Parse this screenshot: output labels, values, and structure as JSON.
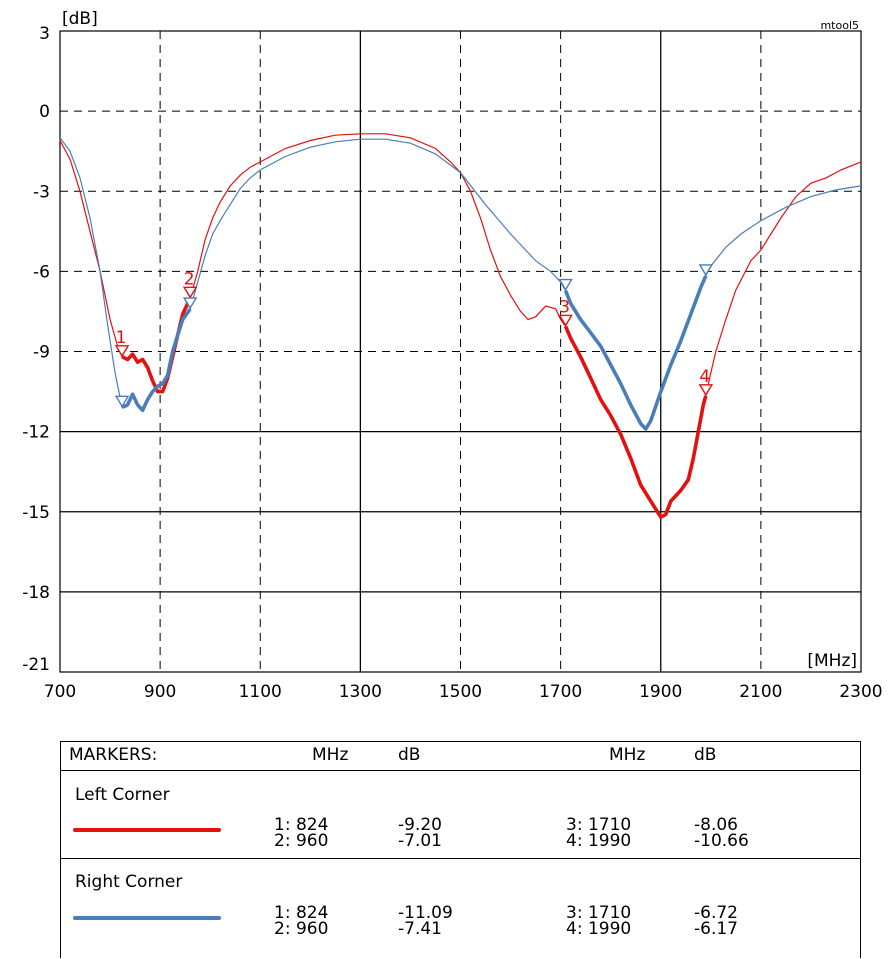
{
  "chart_data": {
    "type": "line",
    "tool_label": "mtool5",
    "ylabel": "[dB]",
    "xlabel": "[MHz]",
    "xlim": [
      700,
      2300
    ],
    "ylim": [
      -21,
      3
    ],
    "x_ticks": [
      "700",
      "900",
      "1100",
      "1300",
      "1500",
      "1700",
      "1900",
      "2100",
      "2300"
    ],
    "y_ticks": [
      "3",
      "0",
      "-3",
      "-6",
      "-9",
      "-12",
      "-15",
      "-18",
      "-21"
    ],
    "grid": true,
    "colors": {
      "red": "#e3110f",
      "blue": "#4a7eb8"
    },
    "series": [
      {
        "name": "Left Corner",
        "color": "#e3110f",
        "points": [
          [
            700,
            -1.1
          ],
          [
            720,
            -1.8
          ],
          [
            740,
            -3.0
          ],
          [
            760,
            -4.5
          ],
          [
            780,
            -6.0
          ],
          [
            800,
            -7.8
          ],
          [
            815,
            -8.8
          ],
          [
            824,
            -9.2
          ],
          [
            835,
            -9.3
          ],
          [
            845,
            -9.1
          ],
          [
            855,
            -9.4
          ],
          [
            865,
            -9.3
          ],
          [
            875,
            -9.6
          ],
          [
            885,
            -10.1
          ],
          [
            895,
            -10.5
          ],
          [
            905,
            -10.5
          ],
          [
            915,
            -10.0
          ],
          [
            925,
            -9.2
          ],
          [
            935,
            -8.4
          ],
          [
            945,
            -7.6
          ],
          [
            960,
            -7.0
          ],
          [
            975,
            -6.0
          ],
          [
            990,
            -4.8
          ],
          [
            1005,
            -4.0
          ],
          [
            1020,
            -3.4
          ],
          [
            1040,
            -2.8
          ],
          [
            1060,
            -2.4
          ],
          [
            1080,
            -2.1
          ],
          [
            1100,
            -1.9
          ],
          [
            1150,
            -1.4
          ],
          [
            1200,
            -1.1
          ],
          [
            1250,
            -0.9
          ],
          [
            1300,
            -0.85
          ],
          [
            1350,
            -0.85
          ],
          [
            1400,
            -1.0
          ],
          [
            1450,
            -1.4
          ],
          [
            1480,
            -1.9
          ],
          [
            1500,
            -2.3
          ],
          [
            1520,
            -3.0
          ],
          [
            1540,
            -4.0
          ],
          [
            1560,
            -5.2
          ],
          [
            1580,
            -6.2
          ],
          [
            1600,
            -6.9
          ],
          [
            1620,
            -7.5
          ],
          [
            1635,
            -7.8
          ],
          [
            1650,
            -7.7
          ],
          [
            1670,
            -7.3
          ],
          [
            1690,
            -7.4
          ],
          [
            1700,
            -7.8
          ],
          [
            1710,
            -8.06
          ],
          [
            1720,
            -8.5
          ],
          [
            1740,
            -9.2
          ],
          [
            1760,
            -10.0
          ],
          [
            1780,
            -10.8
          ],
          [
            1800,
            -11.4
          ],
          [
            1820,
            -12.1
          ],
          [
            1840,
            -13.0
          ],
          [
            1860,
            -14.0
          ],
          [
            1880,
            -14.6
          ],
          [
            1900,
            -15.2
          ],
          [
            1910,
            -15.1
          ],
          [
            1920,
            -14.6
          ],
          [
            1940,
            -14.2
          ],
          [
            1955,
            -13.8
          ],
          [
            1965,
            -13.0
          ],
          [
            1975,
            -12.0
          ],
          [
            1985,
            -11.0
          ],
          [
            1990,
            -10.66
          ],
          [
            2000,
            -9.8
          ],
          [
            2010,
            -9.0
          ],
          [
            2030,
            -7.8
          ],
          [
            2050,
            -6.7
          ],
          [
            2080,
            -5.6
          ],
          [
            2100,
            -5.2
          ],
          [
            2120,
            -4.6
          ],
          [
            2140,
            -4.0
          ],
          [
            2170,
            -3.2
          ],
          [
            2200,
            -2.7
          ],
          [
            2230,
            -2.5
          ],
          [
            2260,
            -2.2
          ],
          [
            2300,
            -1.9
          ]
        ]
      },
      {
        "name": "Right Corner",
        "color": "#4a7eb8",
        "points": [
          [
            700,
            -1.0
          ],
          [
            720,
            -1.5
          ],
          [
            740,
            -2.5
          ],
          [
            760,
            -4.0
          ],
          [
            780,
            -6.0
          ],
          [
            795,
            -8.0
          ],
          [
            810,
            -9.8
          ],
          [
            824,
            -11.09
          ],
          [
            835,
            -11.0
          ],
          [
            845,
            -10.6
          ],
          [
            855,
            -11.0
          ],
          [
            865,
            -11.2
          ],
          [
            875,
            -10.8
          ],
          [
            885,
            -10.5
          ],
          [
            895,
            -10.3
          ],
          [
            905,
            -10.2
          ],
          [
            915,
            -9.9
          ],
          [
            925,
            -9.0
          ],
          [
            935,
            -8.4
          ],
          [
            945,
            -7.8
          ],
          [
            960,
            -7.41
          ],
          [
            975,
            -6.4
          ],
          [
            990,
            -5.4
          ],
          [
            1005,
            -4.6
          ],
          [
            1020,
            -4.1
          ],
          [
            1040,
            -3.5
          ],
          [
            1060,
            -2.9
          ],
          [
            1080,
            -2.5
          ],
          [
            1100,
            -2.2
          ],
          [
            1150,
            -1.7
          ],
          [
            1200,
            -1.35
          ],
          [
            1250,
            -1.15
          ],
          [
            1300,
            -1.05
          ],
          [
            1350,
            -1.05
          ],
          [
            1400,
            -1.2
          ],
          [
            1450,
            -1.6
          ],
          [
            1500,
            -2.3
          ],
          [
            1550,
            -3.5
          ],
          [
            1600,
            -4.6
          ],
          [
            1650,
            -5.6
          ],
          [
            1680,
            -6.0
          ],
          [
            1700,
            -6.4
          ],
          [
            1710,
            -6.72
          ],
          [
            1720,
            -7.2
          ],
          [
            1740,
            -7.8
          ],
          [
            1760,
            -8.3
          ],
          [
            1780,
            -8.8
          ],
          [
            1800,
            -9.5
          ],
          [
            1820,
            -10.2
          ],
          [
            1840,
            -11.0
          ],
          [
            1860,
            -11.7
          ],
          [
            1870,
            -11.9
          ],
          [
            1880,
            -11.6
          ],
          [
            1900,
            -10.5
          ],
          [
            1920,
            -9.5
          ],
          [
            1940,
            -8.6
          ],
          [
            1960,
            -7.6
          ],
          [
            1980,
            -6.6
          ],
          [
            1990,
            -6.17
          ],
          [
            2000,
            -5.8
          ],
          [
            2030,
            -5.1
          ],
          [
            2060,
            -4.6
          ],
          [
            2100,
            -4.1
          ],
          [
            2150,
            -3.6
          ],
          [
            2200,
            -3.2
          ],
          [
            2250,
            -2.95
          ],
          [
            2300,
            -2.8
          ]
        ]
      }
    ],
    "markers": [
      {
        "series": "Left Corner",
        "label": "1",
        "x": 824,
        "y": -9.2
      },
      {
        "series": "Left Corner",
        "label": "2",
        "x": 960,
        "y": -7.01
      },
      {
        "series": "Left Corner",
        "label": "3",
        "x": 1710,
        "y": -8.06
      },
      {
        "series": "Left Corner",
        "label": "4",
        "x": 1990,
        "y": -10.66
      },
      {
        "series": "Right Corner",
        "label": "",
        "x": 824,
        "y": -11.09
      },
      {
        "series": "Right Corner",
        "label": "",
        "x": 960,
        "y": -7.41
      },
      {
        "series": "Right Corner",
        "label": "",
        "x": 1710,
        "y": -6.72
      },
      {
        "series": "Right Corner",
        "label": "",
        "x": 1990,
        "y": -6.17
      }
    ],
    "band_ranges": [
      [
        824,
        960
      ],
      [
        1710,
        1990
      ]
    ]
  },
  "markers_table": {
    "header": {
      "title": "MARKERS:",
      "mhz1": "MHz",
      "db1": "dB",
      "mhz2": "MHz",
      "db2": "dB"
    },
    "groups": [
      {
        "name": "Left Corner",
        "color": "#e3110f",
        "rows": [
          {
            "m_a": "1: 824",
            "db_a": "-9.20",
            "m_b": "3: 1710",
            "db_b": "-8.06"
          },
          {
            "m_a": "2: 960",
            "db_a": "-7.01",
            "m_b": "4: 1990",
            "db_b": "-10.66"
          }
        ]
      },
      {
        "name": "Right Corner",
        "color": "#4a7eb8",
        "rows": [
          {
            "m_a": "1: 824",
            "db_a": "-11.09",
            "m_b": "3: 1710",
            "db_b": "-6.72"
          },
          {
            "m_a": "2: 960",
            "db_a": "-7.41",
            "m_b": "4: 1990",
            "db_b": "-6.17"
          }
        ]
      }
    ]
  }
}
